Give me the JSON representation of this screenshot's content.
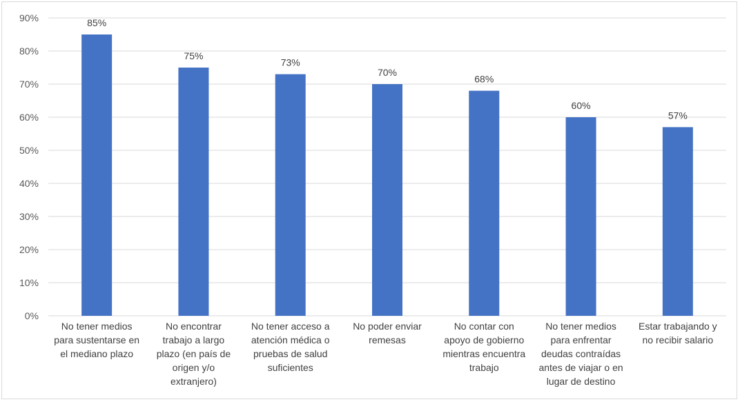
{
  "chart_data": {
    "type": "bar",
    "title": "",
    "xlabel": "",
    "ylabel": "",
    "categories": [
      [
        "No tener medios",
        "para sustentarse en",
        "el mediano plazo"
      ],
      [
        "No encontrar",
        "trabajo a largo",
        "plazo (en país de",
        "origen y/o",
        "extranjero)"
      ],
      [
        "No tener acceso a",
        "atención médica o",
        "pruebas de salud",
        "suficientes"
      ],
      [
        "No poder enviar",
        "remesas"
      ],
      [
        "No contar con",
        "apoyo de gobierno",
        "mientras encuentra",
        "trabajo"
      ],
      [
        "No tener medios",
        "para enfrentar",
        "deudas contraídas",
        "antes de viajar o en",
        "lugar de destino"
      ],
      [
        "Estar trabajando y",
        "no recibir salario"
      ]
    ],
    "values": [
      85,
      75,
      73,
      70,
      68,
      60,
      57
    ],
    "data_labels": [
      "85%",
      "75%",
      "73%",
      "70%",
      "68%",
      "60%",
      "57%"
    ],
    "ylim": [
      0,
      90
    ],
    "yticks": [
      0,
      10,
      20,
      30,
      40,
      50,
      60,
      70,
      80,
      90
    ],
    "ytick_labels": [
      "0%",
      "10%",
      "20%",
      "30%",
      "40%",
      "50%",
      "60%",
      "70%",
      "80%",
      "90%"
    ],
    "grid": true,
    "legend": "none",
    "colors": {
      "bar": "#4472c4",
      "grid": "#d9d9d9"
    }
  }
}
